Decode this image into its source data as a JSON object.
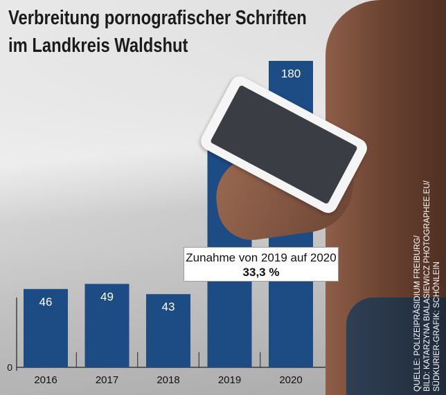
{
  "title_line1": "Verbreitung pornografischer Schriften",
  "title_line2": "im Landkreis Waldshut",
  "callout": {
    "line1": "Zunahme von 2019 auf 2020",
    "line2": "33,3 %"
  },
  "source": {
    "line1": "QUELLE: POLIZEIPRÄSIDIUM FREIBURG/",
    "line2": "BILD: KATARZYNA BIALASIEWICZ PHOTOGRAPHEE.EU/",
    "line3": "SÜDKURIER-GRAFIK: SCHÖNLEIN"
  },
  "colors": {
    "bar": "#1d4b84",
    "bar_label": "#ffffff",
    "axis": "#222222"
  },
  "chart_data": {
    "type": "bar",
    "categories": [
      "2016",
      "2017",
      "2018",
      "2019",
      "2020"
    ],
    "values": [
      46,
      49,
      43,
      135,
      180
    ],
    "ylim": [
      0,
      180
    ],
    "y_ticks": [
      "0"
    ],
    "xlabel": "",
    "ylabel": ""
  }
}
